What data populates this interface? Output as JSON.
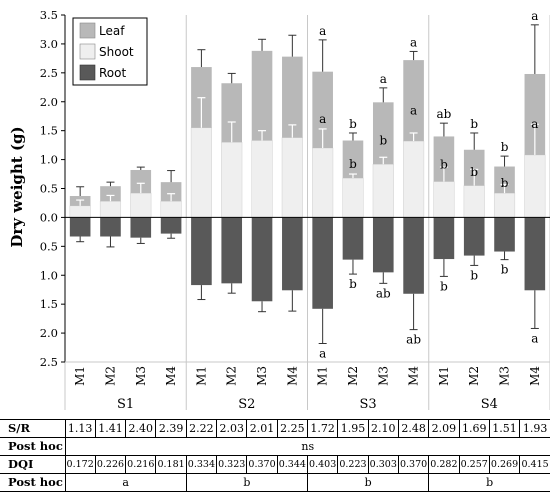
{
  "chart_data": {
    "type": "bar",
    "stacked": true,
    "ylabel": "Dry weight (g)",
    "ylim": [
      -2.5,
      3.5
    ],
    "yticks": [
      {
        "value": 3.5,
        "label": "3.5"
      },
      {
        "value": 3.0,
        "label": "3.0"
      },
      {
        "value": 2.5,
        "label": "2.5"
      },
      {
        "value": 2.0,
        "label": "2.0"
      },
      {
        "value": 1.5,
        "label": "1.5"
      },
      {
        "value": 1.0,
        "label": "1.0"
      },
      {
        "value": 0.5,
        "label": "0.5"
      },
      {
        "value": 0.0,
        "label": "0.0"
      },
      {
        "value": -0.5,
        "label": "0.5"
      },
      {
        "value": -1.0,
        "label": "1.0"
      },
      {
        "value": -1.5,
        "label": "1.5"
      },
      {
        "value": -2.0,
        "label": "2.0"
      },
      {
        "value": -2.5,
        "label": "2.5"
      }
    ],
    "groups": [
      "S1",
      "S2",
      "S3",
      "S4"
    ],
    "categories": [
      "M1",
      "M2",
      "M3",
      "M4",
      "M1",
      "M2",
      "M3",
      "M4",
      "M1",
      "M2",
      "M3",
      "M4",
      "M1",
      "M2",
      "M3",
      "M4"
    ],
    "legend": {
      "position": "top-left",
      "entries": [
        "Leaf",
        "Shoot",
        "Root"
      ]
    },
    "colors": {
      "Leaf": "#b8b8b8",
      "Shoot": "#efefef",
      "Root": "#595959"
    },
    "series": [
      {
        "name": "Shoot",
        "values": [
          0.2,
          0.28,
          0.42,
          0.28,
          1.55,
          1.3,
          1.33,
          1.38,
          1.2,
          0.68,
          0.92,
          1.32,
          0.62,
          0.55,
          0.42,
          1.08
        ],
        "error": [
          0.1,
          0.1,
          0.17,
          0.13,
          0.52,
          0.35,
          0.17,
          0.22,
          0.33,
          0.07,
          0.12,
          0.14,
          0.25,
          0.28,
          0.15,
          0.53
        ]
      },
      {
        "name": "Leaf",
        "values": [
          0.17,
          0.26,
          0.4,
          0.33,
          1.05,
          1.02,
          1.55,
          1.4,
          1.32,
          0.65,
          1.07,
          1.4,
          0.78,
          0.62,
          0.46,
          1.4
        ],
        "error": [
          0.16,
          0.07,
          0.05,
          0.2,
          0.3,
          0.17,
          0.2,
          0.37,
          0.55,
          0.13,
          0.25,
          0.15,
          0.23,
          0.29,
          0.18,
          0.85
        ]
      },
      {
        "name": "Root",
        "values": [
          -0.33,
          -0.33,
          -0.35,
          -0.28,
          -1.17,
          -1.14,
          -1.45,
          -1.26,
          -1.58,
          -0.73,
          -0.95,
          -1.32,
          -0.72,
          -0.66,
          -0.59,
          -1.26
        ],
        "error": [
          0.09,
          0.18,
          0.1,
          0.08,
          0.25,
          0.17,
          0.18,
          0.36,
          0.6,
          0.25,
          0.19,
          0.62,
          0.3,
          0.17,
          0.14,
          0.66
        ]
      }
    ],
    "annotations": {
      "leaf_top": [
        "",
        "",
        "",
        "",
        "",
        "",
        "",
        "",
        "a",
        "b",
        "a",
        "a",
        "ab",
        "b",
        "b",
        "a"
      ],
      "shoot": [
        "",
        "",
        "",
        "",
        "",
        "",
        "",
        "",
        "a",
        "b",
        "b",
        "a",
        "b",
        "b",
        "b",
        "a"
      ],
      "root": [
        "",
        "",
        "",
        "",
        "",
        "",
        "",
        "",
        "a",
        "b",
        "ab",
        "ab",
        "b",
        "b",
        "b",
        "a"
      ]
    }
  },
  "table": {
    "rows": [
      {
        "label": "S/R",
        "values": [
          "1.13",
          "1.41",
          "2.40",
          "2.39",
          "2.22",
          "2.03",
          "2.01",
          "2.25",
          "1.72",
          "1.95",
          "2.10",
          "2.48",
          "2.09",
          "1.69",
          "1.51",
          "1.93"
        ]
      },
      {
        "label": "Post hoc",
        "span_all": "ns"
      },
      {
        "label": "DQI",
        "values": [
          "0.172",
          "0.226",
          "0.216",
          "0.181",
          "0.334",
          "0.323",
          "0.370",
          "0.344",
          "0.403",
          "0.223",
          "0.303",
          "0.370",
          "0.282",
          "0.257",
          "0.269",
          "0.415"
        ]
      },
      {
        "label": "Post hoc",
        "span_groups": [
          "a",
          "b",
          "b",
          "b"
        ]
      }
    ]
  }
}
